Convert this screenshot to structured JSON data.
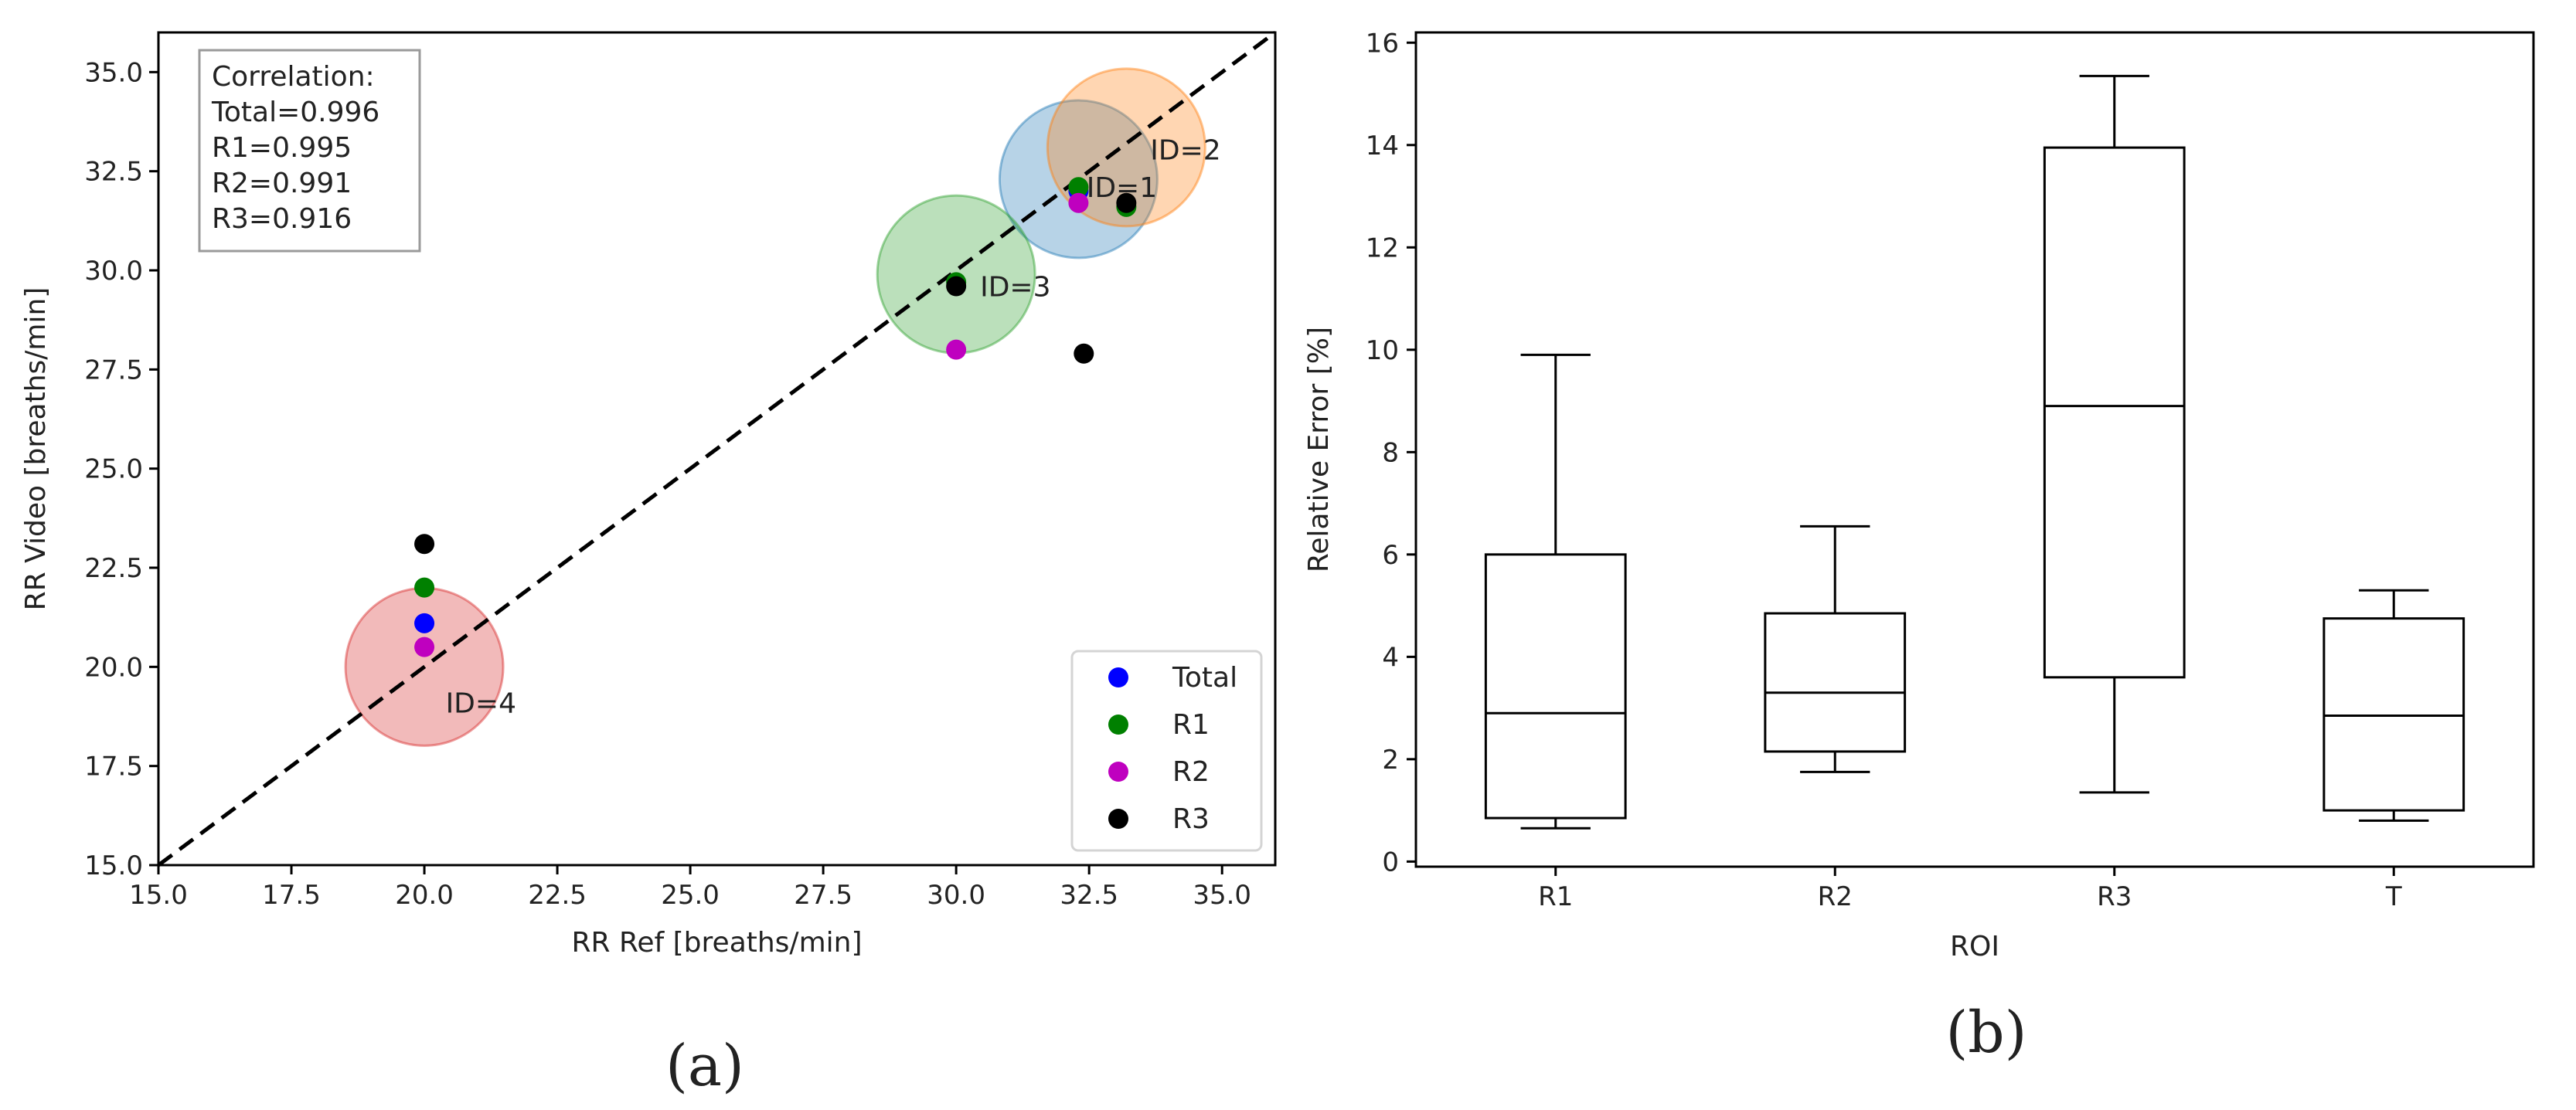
{
  "chart_data": [
    {
      "type": "scatter",
      "panel_label": "(a)",
      "xlabel": "RR Ref [breaths/min]",
      "ylabel": "RR Video [breaths/min]",
      "xlim": [
        15.0,
        36.0
      ],
      "ylim": [
        15.0,
        36.0
      ],
      "xticks": [
        "15.0",
        "17.5",
        "20.0",
        "22.5",
        "25.0",
        "27.5",
        "30.0",
        "32.5",
        "35.0"
      ],
      "yticks": [
        "15.0",
        "17.5",
        "20.0",
        "22.5",
        "25.0",
        "27.5",
        "30.0",
        "32.5",
        "35.0"
      ],
      "grid": false,
      "identity_line": true,
      "correlation_box": {
        "lines": [
          "Correlation:",
          "Total=0.996",
          "R1=0.995",
          "R2=0.991",
          "R3=0.916"
        ],
        "placement": "top-left"
      },
      "legend_placement": "bottom-right",
      "series": [
        {
          "name": "Total",
          "color": "#0000ff",
          "points": [
            [
              20.0,
              21.1
            ],
            [
              32.3,
              32.0
            ]
          ]
        },
        {
          "name": "R1",
          "color": "#008000",
          "points": [
            [
              20.0,
              22.0
            ],
            [
              30.0,
              29.7
            ],
            [
              32.3,
              32.1
            ],
            [
              33.2,
              31.6
            ]
          ]
        },
        {
          "name": "R2",
          "color": "#bf00bf",
          "points": [
            [
              20.0,
              20.5
            ],
            [
              30.0,
              28.0
            ],
            [
              32.3,
              31.7
            ]
          ]
        },
        {
          "name": "R3",
          "color": "#000000",
          "points": [
            [
              20.0,
              23.1
            ],
            [
              30.0,
              29.6
            ],
            [
              32.4,
              27.9
            ],
            [
              33.2,
              31.7
            ]
          ]
        }
      ],
      "subject_circles": [
        {
          "label": "ID=1",
          "x": 32.3,
          "y": 32.3,
          "color": "#1f77b4"
        },
        {
          "label": "ID=2",
          "x": 33.2,
          "y": 33.1,
          "color": "#ff7f0e"
        },
        {
          "label": "ID=3",
          "x": 30.0,
          "y": 29.9,
          "color": "#2ca02c"
        },
        {
          "label": "ID=4",
          "x": 20.0,
          "y": 20.0,
          "color": "#d62728"
        }
      ]
    },
    {
      "type": "box",
      "panel_label": "(b)",
      "xlabel": "ROI",
      "ylabel": "Relative Error [%]",
      "ylim": [
        -0.1,
        16.2
      ],
      "yticks": [
        "0",
        "2",
        "4",
        "6",
        "8",
        "10",
        "12",
        "14",
        "16"
      ],
      "grid": false,
      "categories": [
        "R1",
        "R2",
        "R3",
        "T"
      ],
      "boxes": [
        {
          "name": "R1",
          "whisker_low": 0.65,
          "q1": 0.85,
          "median": 2.9,
          "q3": 6.0,
          "whisker_high": 9.9
        },
        {
          "name": "R2",
          "whisker_low": 1.75,
          "q1": 2.15,
          "median": 3.3,
          "q3": 4.85,
          "whisker_high": 6.55
        },
        {
          "name": "R3",
          "whisker_low": 1.35,
          "q1": 3.6,
          "median": 8.9,
          "q3": 13.95,
          "whisker_high": 15.35
        },
        {
          "name": "T",
          "whisker_low": 0.8,
          "q1": 1.0,
          "median": 2.85,
          "q3": 4.75,
          "whisker_high": 5.3
        }
      ]
    }
  ]
}
